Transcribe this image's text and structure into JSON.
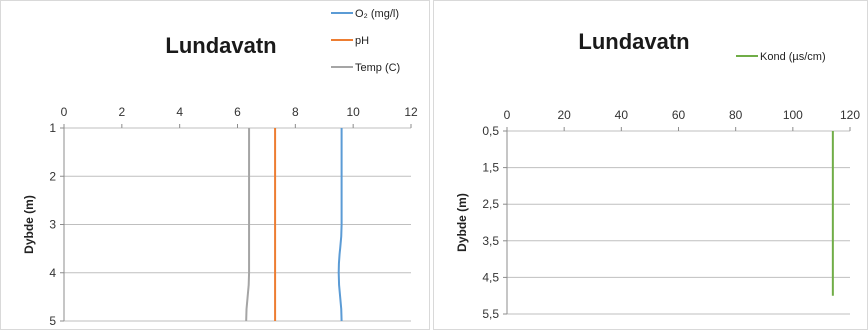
{
  "chart_data": [
    {
      "type": "line",
      "title": "Lundavatn",
      "xlabel": "",
      "ylabel": "Dybde (m)",
      "xlim": [
        0,
        12
      ],
      "xticks": [
        "0",
        "2",
        "4",
        "6",
        "8",
        "10",
        "12"
      ],
      "ylim": [
        1,
        5
      ],
      "yticks": [
        "1",
        "2",
        "3",
        "4",
        "5"
      ],
      "y_inverted": true,
      "grid": "horizontal",
      "legend_position": "top-right",
      "series": [
        {
          "name": "O₂ (mg/l)",
          "color": "#5b9bd5",
          "x": [
            9.6,
            9.6,
            9.6,
            9.5,
            9.6
          ],
          "y": [
            1,
            2,
            3,
            4,
            5
          ]
        },
        {
          "name": "pH",
          "color": "#ed7d31",
          "x": [
            7.3,
            7.3,
            7.3,
            7.3,
            7.3
          ],
          "y": [
            1,
            2,
            3,
            4,
            5
          ]
        },
        {
          "name": "Temp (C)",
          "color": "#a5a5a5",
          "x": [
            6.4,
            6.4,
            6.4,
            6.4,
            6.3
          ],
          "y": [
            1,
            2,
            3,
            4,
            5
          ]
        }
      ]
    },
    {
      "type": "line",
      "title": "Lundavatn",
      "xlabel": "",
      "ylabel": "Dybde (m)",
      "xlim": [
        0,
        120
      ],
      "xticks": [
        "0",
        "20",
        "40",
        "60",
        "80",
        "100",
        "120"
      ],
      "ylim": [
        0.5,
        5.5
      ],
      "yticks": [
        "0,5",
        "1,5",
        "2,5",
        "3,5",
        "4,5",
        "5,5"
      ],
      "y_inverted": true,
      "grid": "horizontal",
      "legend_position": "top-right",
      "series": [
        {
          "name": "Kond (µs/cm)",
          "color": "#70ad47",
          "x": [
            114,
            114,
            114,
            114,
            114
          ],
          "y": [
            0.5,
            1.5,
            2.5,
            3.5,
            5
          ]
        }
      ]
    }
  ]
}
